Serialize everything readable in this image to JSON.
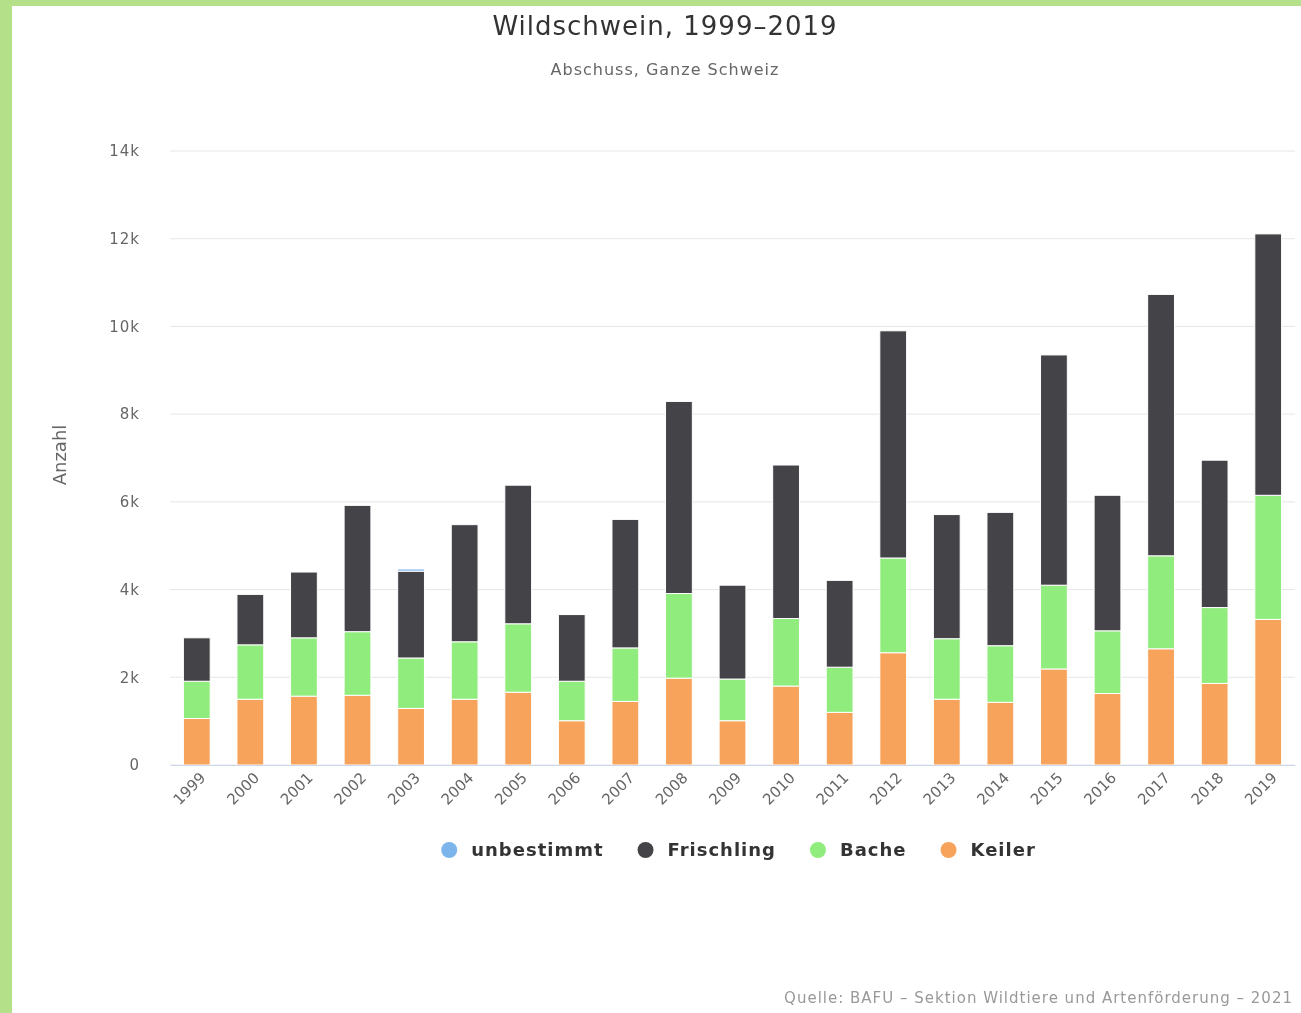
{
  "chart_data": {
    "type": "bar",
    "title": "Wildschwein, 1999–2019",
    "subtitle": "Abschuss, Ganze Schweiz",
    "ylabel": "Anzahl",
    "categories": [
      "1999",
      "2000",
      "2001",
      "2002",
      "2003",
      "2004",
      "2005",
      "2006",
      "2007",
      "2008",
      "2009",
      "2010",
      "2011",
      "2012",
      "2013",
      "2014",
      "2015",
      "2016",
      "2017",
      "2018",
      "2019"
    ],
    "stacked": true,
    "legend": "bottom",
    "grid": "y",
    "ylim": [
      0,
      14000
    ],
    "yticks": [
      0,
      {
        "value": 2000,
        "label": "2k"
      },
      {
        "value": 4000,
        "label": "4k"
      },
      {
        "value": 6000,
        "label": "6k"
      },
      {
        "value": 8000,
        "label": "8k"
      },
      {
        "value": 10000,
        "label": "10k"
      },
      {
        "value": 12000,
        "label": "12k"
      },
      {
        "value": 14000,
        "label": "14k"
      }
    ],
    "series": [
      {
        "name": "Keiler",
        "color": "#f7a35c",
        "values": [
          1060,
          1500,
          1570,
          1590,
          1290,
          1500,
          1660,
          1010,
          1450,
          1980,
          1010,
          1800,
          1200,
          2560,
          1500,
          1430,
          2190,
          1630,
          2650,
          1860,
          3320
        ]
      },
      {
        "name": "Bache",
        "color": "#90ed7d",
        "values": [
          850,
          1240,
          1330,
          1450,
          1150,
          1310,
          1560,
          900,
          1220,
          1930,
          950,
          1540,
          1030,
          2160,
          1380,
          1290,
          1910,
          1430,
          2120,
          1730,
          2830
        ]
      },
      {
        "name": "Frischling",
        "color": "#434348",
        "values": [
          990,
          1150,
          1500,
          2880,
          1980,
          2670,
          3160,
          1520,
          2930,
          4380,
          2140,
          3500,
          1980,
          5180,
          2830,
          3040,
          5250,
          3090,
          5960,
          3360,
          5960
        ]
      },
      {
        "name": "unbestimmt",
        "color": "#7cb5ec",
        "values": [
          null,
          null,
          null,
          null,
          50,
          null,
          null,
          null,
          null,
          null,
          null,
          null,
          null,
          null,
          null,
          null,
          null,
          null,
          null,
          null,
          null
        ]
      }
    ],
    "annotations": [
      "Quelle: BAFU – Sektion Wildtiere und Artenförderung – 2021"
    ]
  }
}
